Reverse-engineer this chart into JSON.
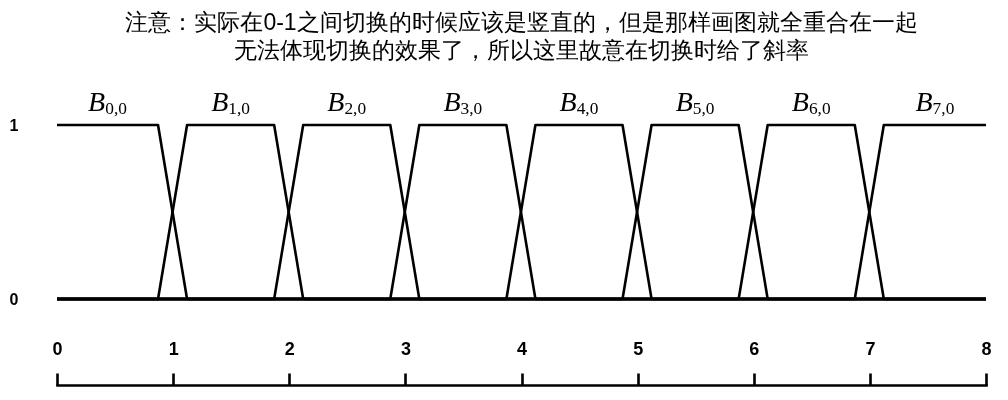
{
  "chart_data": {
    "type": "line",
    "title": "注意：实际在0-1之间切换的时候应该是竖直的，但是那样画图就全重合在一起无法体现切换的效果了，所以这里故意在切换时给了斜率",
    "xlim": [
      0,
      8
    ],
    "xticks": [
      0,
      1,
      2,
      3,
      4,
      5,
      6,
      7,
      8
    ],
    "ylim": [
      0,
      1
    ],
    "yticks": [
      0,
      1
    ],
    "series": [
      {
        "name": "B$_{0,0}$",
        "color": "#000000",
        "x": [
          0,
          0.87,
          1.12,
          8
        ],
        "values": [
          1,
          1,
          0,
          0
        ]
      },
      {
        "name": "B$_{1,0}$",
        "color": "#000000",
        "x": [
          0,
          0.87,
          1.12,
          1.87,
          2.12,
          8
        ],
        "values": [
          0,
          0,
          1,
          1,
          0,
          0
        ]
      },
      {
        "name": "B$_{2,0}$",
        "color": "#000000",
        "x": [
          0,
          1.87,
          2.12,
          2.87,
          3.12,
          8
        ],
        "values": [
          0,
          0,
          1,
          1,
          0,
          0
        ]
      },
      {
        "name": "B$_{3,0}$",
        "color": "#000000",
        "x": [
          0,
          2.87,
          3.12,
          3.87,
          4.12,
          8
        ],
        "values": [
          0,
          0,
          1,
          1,
          0,
          0
        ]
      },
      {
        "name": "B$_{4,0}$",
        "color": "#000000",
        "x": [
          0,
          3.87,
          4.12,
          4.87,
          5.12,
          8
        ],
        "values": [
          0,
          0,
          1,
          1,
          0,
          0
        ]
      },
      {
        "name": "B$_{5,0}$",
        "color": "#000000",
        "x": [
          0,
          4.87,
          5.12,
          5.87,
          6.12,
          8
        ],
        "values": [
          0,
          0,
          1,
          1,
          0,
          0
        ]
      },
      {
        "name": "B$_{6,0}$",
        "color": "#000000",
        "x": [
          0,
          5.87,
          6.12,
          6.87,
          7.12,
          8
        ],
        "values": [
          0,
          0,
          1,
          1,
          0,
          0
        ]
      },
      {
        "name": "B$_{7,0}$",
        "color": "#000000",
        "x": [
          0,
          6.87,
          7.12,
          8
        ],
        "values": [
          0,
          0,
          1,
          1
        ]
      }
    ]
  }
}
